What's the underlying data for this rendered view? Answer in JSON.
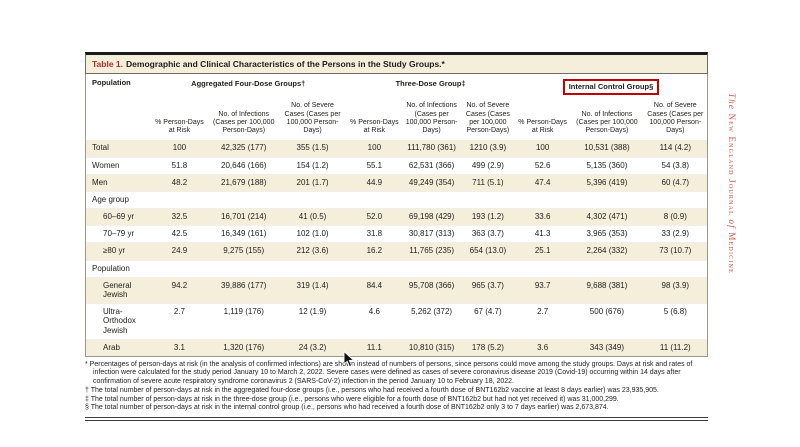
{
  "brand": {
    "the": "The ",
    "journal": "New England Journal ",
    "of": "of ",
    "medicine": "Medicine",
    "color": "#c4584c"
  },
  "table": {
    "title_label": "Table 1.",
    "title_text": "Demographic and Clinical Characteristics of the Persons in the Study Groups.*",
    "col_population": "Population",
    "accent_red": "#b02e28",
    "highlight_red": "#c00000",
    "stripe_color": "#f5eedb",
    "groups": [
      {
        "label": "Aggregated Four-Dose Groups†"
      },
      {
        "label": "Three-Dose Group‡"
      },
      {
        "label": "Internal Control Group§"
      }
    ],
    "subheaders": {
      "pct": "% Person-Days at Risk",
      "infections": "No. of Infections (Cases per 100,000 Person-Days)",
      "severe": "No. of Severe Cases (Cases per 100,000 Person-Days)"
    },
    "rows": [
      {
        "label": "Total",
        "indent": 0,
        "values": [
          "100",
          "42,325 (177)",
          "355 (1.5)",
          "100",
          "111,780 (361)",
          "1210 (3.9)",
          "100",
          "10,531 (388)",
          "114 (4.2)"
        ]
      },
      {
        "label": "Women",
        "indent": 0,
        "values": [
          "51.8",
          "20,646 (166)",
          "154 (1.2)",
          "55.1",
          "62,531 (366)",
          "499 (2.9)",
          "52.6",
          "5,135 (360)",
          "54 (3.8)"
        ]
      },
      {
        "label": "Men",
        "indent": 0,
        "values": [
          "48.2",
          "21,679 (188)",
          "201 (1.7)",
          "44.9",
          "49,249 (354)",
          "711 (5.1)",
          "47.4",
          "5,396 (419)",
          "60 (4.7)"
        ]
      },
      {
        "label": "Age group",
        "indent": 0,
        "values": [
          "",
          "",
          "",
          "",
          "",
          "",
          "",
          "",
          ""
        ]
      },
      {
        "label": "60–69 yr",
        "indent": 1,
        "values": [
          "32.5",
          "16,701 (214)",
          "41 (0.5)",
          "52.0",
          "69,198 (429)",
          "193 (1.2)",
          "33.6",
          "4,302 (471)",
          "8 (0.9)"
        ]
      },
      {
        "label": "70–79 yr",
        "indent": 1,
        "values": [
          "42.5",
          "16,349 (161)",
          "102 (1.0)",
          "31.8",
          "30,817 (313)",
          "363 (3.7)",
          "41.3",
          "3,965 (353)",
          "33 (2.9)"
        ]
      },
      {
        "label": "≥80 yr",
        "indent": 1,
        "values": [
          "24.9",
          "9,275 (155)",
          "212 (3.6)",
          "16.2",
          "11,765 (235)",
          "654 (13.0)",
          "25.1",
          "2,264 (332)",
          "73 (10.7)"
        ]
      },
      {
        "label": "Population",
        "indent": 0,
        "values": [
          "",
          "",
          "",
          "",
          "",
          "",
          "",
          "",
          ""
        ]
      },
      {
        "label": "General Jewish",
        "indent": 1,
        "values": [
          "94.2",
          "39,886 (177)",
          "319 (1.4)",
          "84.4",
          "95,708 (366)",
          "965 (3.7)",
          "93.7",
          "9,688 (381)",
          "98 (3.9)"
        ]
      },
      {
        "label": "Ultra-Orthodox Jewish",
        "indent": 1,
        "values": [
          "2.7",
          "1,119 (176)",
          "12 (1.9)",
          "4.6",
          "5,262 (372)",
          "67 (4.7)",
          "2.7",
          "500 (676)",
          "5 (6.8)"
        ]
      },
      {
        "label": "Arab",
        "indent": 1,
        "values": [
          "3.1",
          "1,320 (176)",
          "24 (3.2)",
          "11.1",
          "10,810 (315)",
          "178 (5.2)",
          "3.6",
          "343 (349)",
          "11 (11.2)"
        ]
      }
    ],
    "footnotes": [
      {
        "symbol": "*",
        "text": " Percentages of person-days at risk (in the analysis of confirmed infections) are shown instead of numbers of persons, since persons could move among the study groups. Days at risk and rates of infection were calculated for the study period January 10 to March 2, 2022. Severe cases were defined as cases of severe coronavirus disease 2019 (Covid-19) occurring within 14 days after confirmation of severe acute respiratory syndrome coronavirus 2 (SARS-CoV-2) infection in the period January 10 to February 18, 2022."
      },
      {
        "symbol": "†",
        "text": " The total number of person-days at risk in the aggregated four-dose groups (i.e., persons who had received a fourth dose of BNT162b2 vaccine at least 8 days earlier) was 23,935,905."
      },
      {
        "symbol": "‡",
        "text": " The total number of person-days at risk in the three-dose group (i.e., persons who were eligible for a fourth dose of BNT162b2 but had not yet received it) was 31,000,299."
      },
      {
        "symbol": "§",
        "text": " The total number of person-days at risk in the internal control group (i.e., persons who had received a fourth dose of BNT162b2 only 3 to 7 days earlier) was 2,673,874."
      }
    ]
  }
}
